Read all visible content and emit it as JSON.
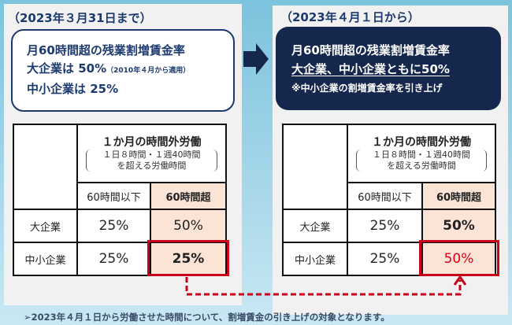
{
  "before": {
    "title": "（2023年３月31日まで）",
    "lines": [
      "月60時間超の残業割増賃金率",
      "大企業は 50%",
      "（2010年４月から適用）",
      "中小企業は 25%"
    ],
    "table": {
      "header": "１か月の時間外労働",
      "sub1": "１日８時間・１週40時間",
      "sub2": "を超える労働時間",
      "col1": "60時間以下",
      "col2": "60時間超",
      "rows": [
        {
          "label": "大企業",
          "c1": "25%",
          "c2": "50%"
        },
        {
          "label": "中小企業",
          "c1": "25%",
          "c2": "25%"
        }
      ]
    }
  },
  "after": {
    "title": "（2023年４月１日から）",
    "lines": [
      "月60時間超の残業割増賃金率",
      "大企業、中小企業ともに50%",
      "※中小企業の割増賃金率を引き上げ"
    ],
    "table": {
      "header": "１か月の時間外労働",
      "sub1": "１日８時間・１週40時間",
      "sub2": "を超える労働時間",
      "col1": "60時間以下",
      "col2": "60時間超",
      "rows": [
        {
          "label": "大企業",
          "c1": "25%",
          "c2": "50%"
        },
        {
          "label": "中小企業",
          "c1": "25%",
          "c2": "50%"
        }
      ]
    }
  },
  "footer": "➢2023年４月１日から労働させた時間について、割増賃金の引き上げの対象となります。",
  "colors": {
    "navy": "#16274d",
    "highlight": "#c8001a",
    "pink": "#fbe3d5"
  }
}
